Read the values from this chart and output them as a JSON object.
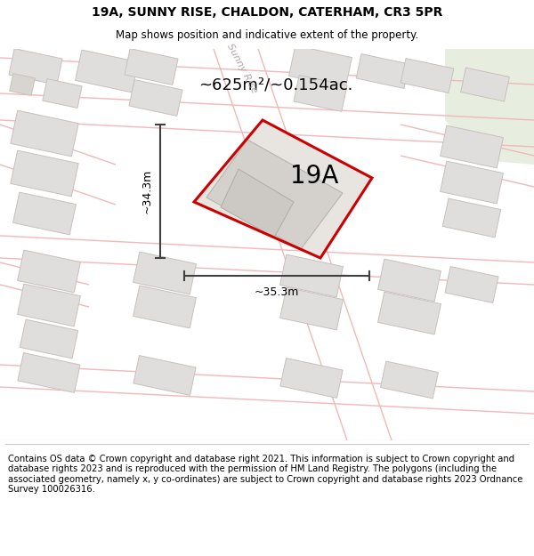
{
  "title_line1": "19A, SUNNY RISE, CHALDON, CATERHAM, CR3 5PR",
  "title_line2": "Map shows position and indicative extent of the property.",
  "area_text": "~625m²/~0.154ac.",
  "label_19A": "19A",
  "dim_width": "~35.3m",
  "dim_height": "~34.3m",
  "footer_text": "Contains OS data © Crown copyright and database right 2021. This information is subject to Crown copyright and database rights 2023 and is reproduced with the permission of HM Land Registry. The polygons (including the associated geometry, namely x, y co-ordinates) are subject to Crown copyright and database rights 2023 Ordnance Survey 100026316.",
  "map_bg": "#f2f0ed",
  "road_line_color": "#f0b8b8",
  "building_fill": "#e0dedd",
  "building_edge": "#c8c0bc",
  "plot_fill": "#e8e5e0",
  "plot_outline_color": "#cc0000",
  "inner_fill": "#d8d5d0",
  "dim_line_color": "#404040",
  "text_color": "#000000",
  "footer_bg": "#ffffff",
  "green_fill": "#e8eedf",
  "street_color": "#b0a8a8",
  "fig_width": 6.0,
  "fig_height": 6.25,
  "dpi": 100
}
